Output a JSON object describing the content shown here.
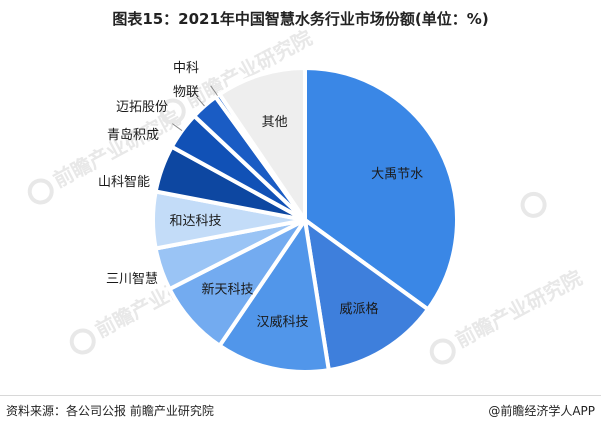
{
  "title": "图表15：2021年中国智慧水务行业市场份额(单位：%)",
  "source": "资料来源：各公司公报 前瞻产业研究院",
  "brand": "@前瞻经济学人APP",
  "watermark_text": "前瞻产业研究院",
  "chart_data": {
    "type": "pie",
    "title": "图表15：2021年中国智慧水务行业市场份额(单位：%)",
    "unit": "%",
    "slices": [
      {
        "label": "大禹节水",
        "value": 35.0,
        "color": "#3a87e6",
        "label_pos": "inside"
      },
      {
        "label": "威派格",
        "value": 12.5,
        "color": "#3e7fdc",
        "label_pos": "inside"
      },
      {
        "label": "汉威科技",
        "value": 12.0,
        "color": "#5196ea",
        "label_pos": "inside"
      },
      {
        "label": "新天科技",
        "value": 8.0,
        "color": "#73abf0",
        "label_pos": "inside"
      },
      {
        "label": "三川智慧",
        "value": 4.5,
        "color": "#9ac4f5",
        "label_pos": "outside"
      },
      {
        "label": "和达科技",
        "value": 6.0,
        "color": "#c3dcf8",
        "label_pos": "inside"
      },
      {
        "label": "山科智能",
        "value": 5.0,
        "color": "#0d47a1",
        "label_pos": "outside"
      },
      {
        "label": "青岛积成",
        "value": 4.0,
        "color": "#1151b6",
        "label_pos": "outside"
      },
      {
        "label": "迈拓股份",
        "value": 3.0,
        "color": "#1a5cc4",
        "label_pos": "outside"
      },
      {
        "label": "中科物联",
        "value": 0.5,
        "color": "#2b6fd6",
        "label_pos": "outside"
      },
      {
        "label": "其他",
        "value": 9.5,
        "color": "#eeeeee",
        "label_pos": "inside"
      }
    ]
  }
}
